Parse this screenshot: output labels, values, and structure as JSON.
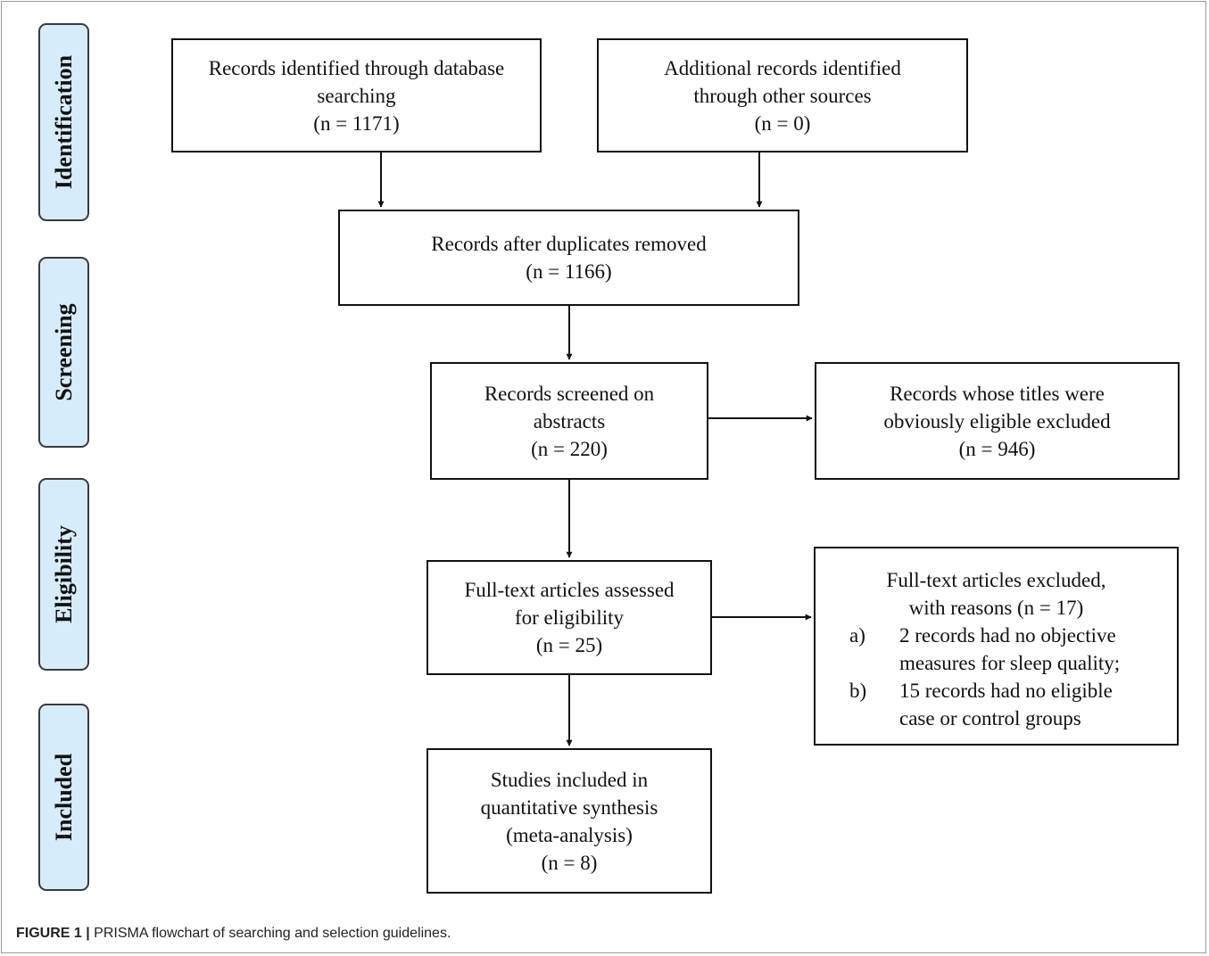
{
  "stages": [
    {
      "id": "identification",
      "label": "Identification"
    },
    {
      "id": "screening",
      "label": "Screening"
    },
    {
      "id": "eligibility",
      "label": "Eligibility"
    },
    {
      "id": "included",
      "label": "Included"
    }
  ],
  "boxes": {
    "database": [
      "Records identified through database",
      "searching",
      "(n = 1171)"
    ],
    "other": [
      "Additional records identified",
      "through other sources",
      "(n = 0)"
    ],
    "duplicates": [
      "Records after duplicates removed",
      "(n = 1166)"
    ],
    "screened": [
      "Records screened on",
      "abstracts",
      "(n = 220)"
    ],
    "excluded_titles": [
      "Records whose titles were",
      "obviously eligible excluded",
      "(n = 946)"
    ],
    "fulltext": [
      "Full-text articles assessed",
      "for eligibility",
      "(n = 25)"
    ],
    "included": [
      "Studies included in",
      "quantitative synthesis",
      "(meta-analysis)",
      "(n = 8)"
    ]
  },
  "excluded_fulltext": {
    "head": [
      "Full-text articles excluded,",
      "with reasons (n = 17)"
    ],
    "reasons": [
      {
        "letter": "a)",
        "lines": [
          "2 records had no objective",
          "measures for sleep quality;"
        ]
      },
      {
        "letter": "b)",
        "lines": [
          "15 records had no eligible",
          "case or control groups"
        ]
      }
    ]
  },
  "caption": {
    "prefix": "FIGURE 1 |",
    "text": " PRISMA flowchart of searching and selection guidelines."
  }
}
